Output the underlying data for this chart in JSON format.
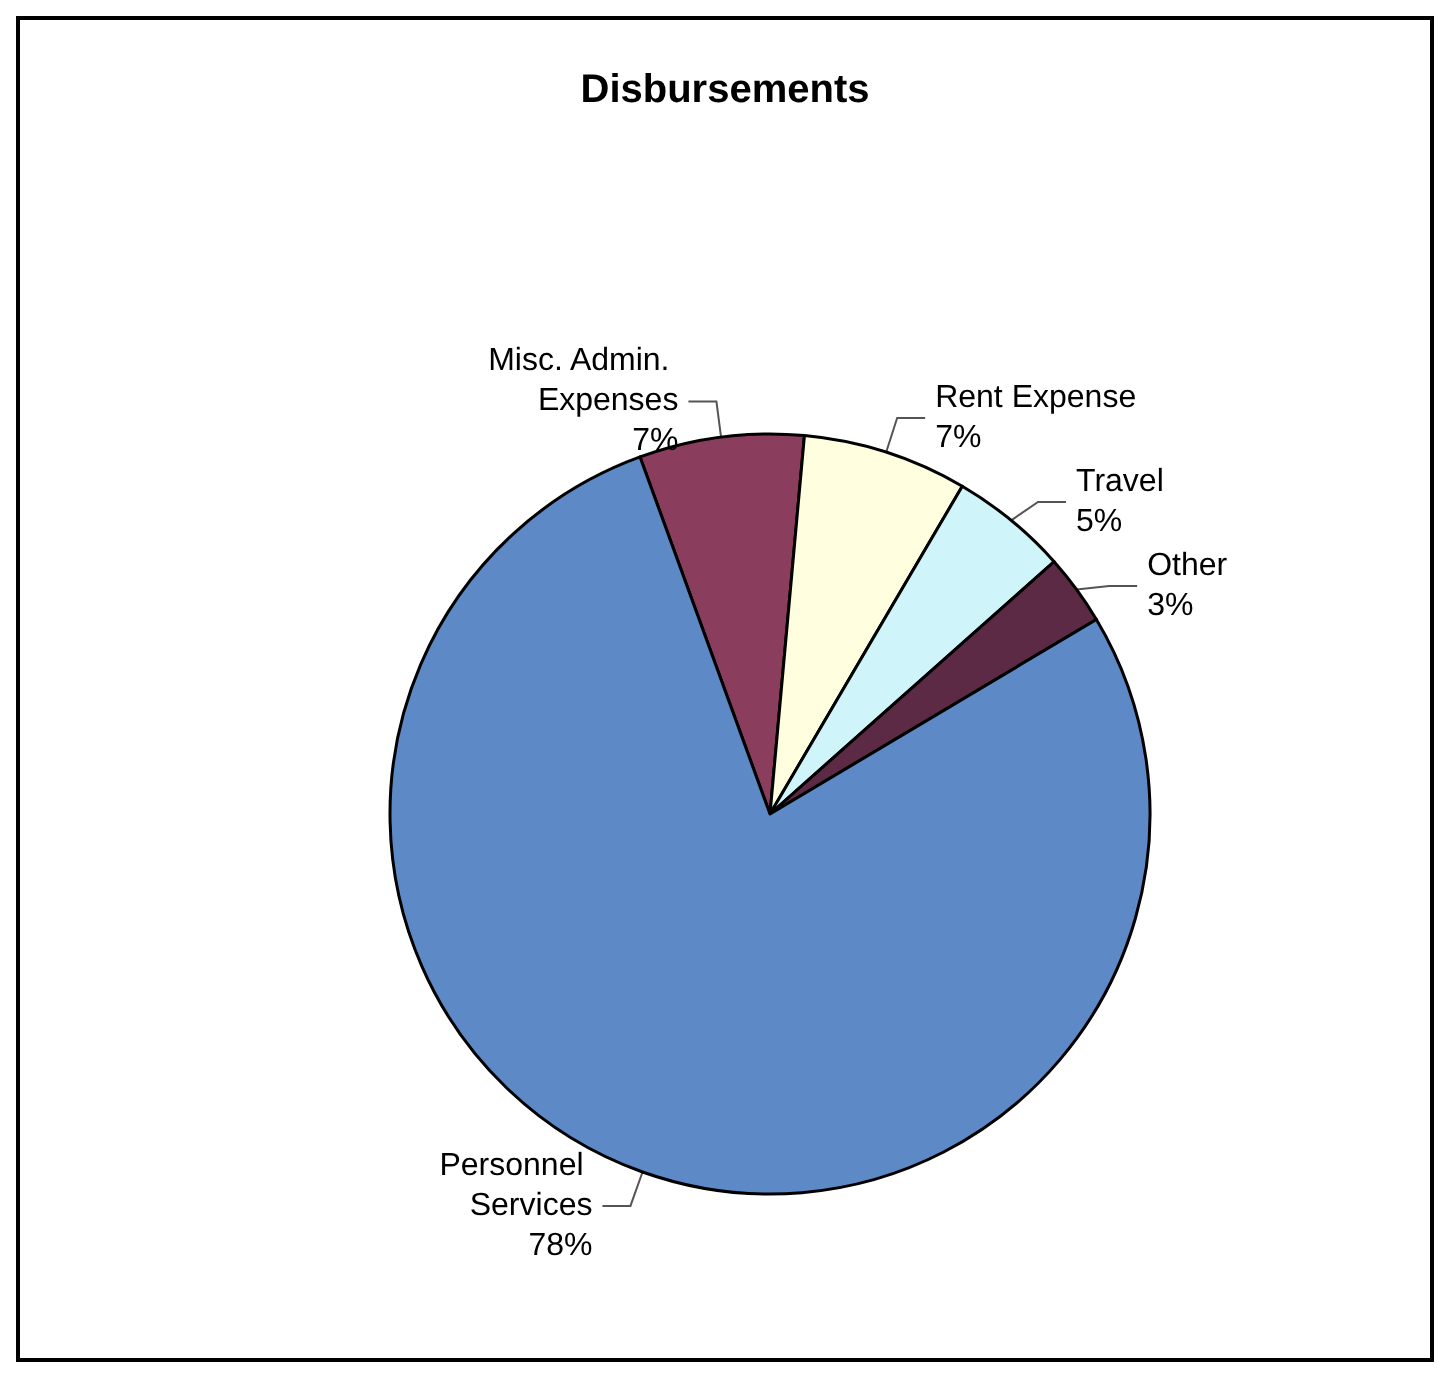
{
  "chart_data": {
    "type": "pie",
    "title": "Disbursements",
    "categories": [
      "Misc. Admin. Expenses",
      "Rent Expense",
      "Travel",
      "Other",
      "Personnel Services"
    ],
    "values": [
      7,
      7,
      5,
      3,
      78
    ],
    "colors": [
      "#8a3d5c",
      "#ffffe0",
      "#cff5fb",
      "#5c2a45",
      "#5d89c6"
    ],
    "value_labels": [
      "7%",
      "7%",
      "5%",
      "3%",
      "78%"
    ],
    "legend": false
  }
}
